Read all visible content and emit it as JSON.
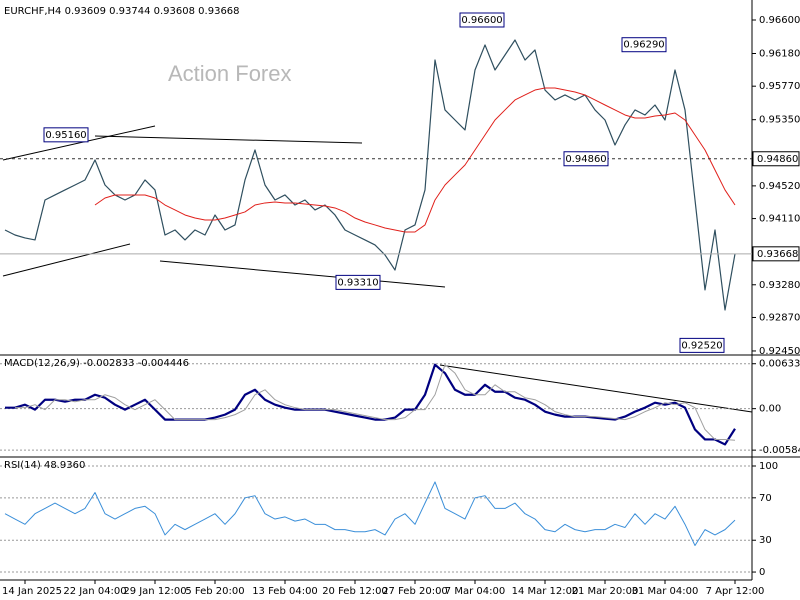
{
  "chart_data": [
    {
      "type": "line",
      "title": "EURCHF,H4  0.93609 0.93744 0.93608 0.93668",
      "watermark": "Action Forex",
      "categories": [
        null,
        null,
        "14 Jan 2025",
        null,
        null,
        null,
        null,
        null,
        null,
        "22 Jan 04:00",
        null,
        null,
        null,
        null,
        null,
        "29 Jan 12:00",
        null,
        null,
        null,
        null,
        null,
        "5 Feb 20:00",
        null,
        null,
        null,
        null,
        null,
        null,
        "13 Feb 04:00",
        null,
        null,
        null,
        null,
        null,
        null,
        "20 Feb 12:00",
        null,
        null,
        null,
        null,
        null,
        "27 Feb 20:00",
        null,
        null,
        null,
        null,
        null,
        "7 Mar 04:00",
        null,
        null,
        null,
        null,
        null,
        null,
        "14 Mar 12:00",
        null,
        null,
        null,
        null,
        null,
        "21 Mar 20:00",
        null,
        null,
        null,
        null,
        null,
        "31 Mar 04:00",
        null,
        null,
        null,
        null,
        null,
        null,
        "7 Apr 12:00"
      ],
      "series": [
        {
          "color": "#2f4f5f",
          "line_width": 1.2,
          "values": [
            0.93967,
            0.93904,
            0.93867,
            0.93842,
            0.94343,
            0.94406,
            0.94469,
            0.94531,
            0.94594,
            0.94845,
            0.94531,
            0.94406,
            0.94343,
            0.94406,
            0.94594,
            0.94469,
            0.93904,
            0.93967,
            0.93842,
            0.93967,
            0.93904,
            0.94155,
            0.93967,
            0.9403,
            0.94594,
            0.9497,
            0.94531,
            0.94343,
            0.94406,
            0.9428,
            0.94343,
            0.94218,
            0.9428,
            0.94155,
            0.93967,
            0.93904,
            0.93842,
            0.93779,
            0.93654,
            0.93465,
            0.93967,
            0.9403,
            0.94469,
            0.96098,
            0.95472,
            0.95346,
            0.95221,
            0.95973,
            0.96287,
            0.95973,
            0.96161,
            0.96349,
            0.96098,
            0.96224,
            0.95722,
            0.95597,
            0.9566,
            0.95597,
            0.9566,
            0.95472,
            0.95346,
            0.95033,
            0.95284,
            0.95472,
            0.95409,
            0.95534,
            0.95346,
            0.95973,
            0.95472,
            0.94343,
            0.93215,
            0.93967,
            0.92964,
            0.93668
          ]
        },
        {
          "color": "#e0201b",
          "line_width": 1,
          "values": [
            null,
            null,
            null,
            null,
            null,
            null,
            null,
            null,
            null,
            0.9428,
            0.94368,
            0.94406,
            0.94406,
            0.94406,
            0.94406,
            0.94368,
            0.9428,
            0.94218,
            0.94155,
            0.94117,
            0.94092,
            0.94092,
            0.94117,
            0.94155,
            0.94193,
            0.9428,
            0.94306,
            0.94318,
            0.94306,
            0.94306,
            0.94293,
            0.9428,
            0.94268,
            0.94243,
            0.94193,
            0.94117,
            0.94067,
            0.9403,
            0.93992,
            0.93967,
            0.93942,
            0.93942,
            0.9403,
            0.94343,
            0.94531,
            0.94657,
            0.94782,
            0.9497,
            0.95158,
            0.95346,
            0.95472,
            0.95597,
            0.9566,
            0.95722,
            0.95747,
            0.95747,
            0.95722,
            0.95697,
            0.9566,
            0.95597,
            0.95534,
            0.95472,
            0.95409,
            0.95371,
            0.95371,
            0.95396,
            0.95409,
            0.95434,
            0.95346,
            0.95158,
            0.9497,
            0.94719,
            0.94469,
            0.9428
          ]
        }
      ],
      "ylim": [
        0.92437,
        0.96788
      ],
      "yticks": [
        {
          "value": 0.966,
          "label": "0.96600"
        },
        {
          "value": 0.9618,
          "label": "0.96180"
        },
        {
          "value": 0.9577,
          "label": "0.95770"
        },
        {
          "value": 0.9535,
          "label": "0.95350"
        },
        {
          "value": 0.9452,
          "label": "0.94520"
        },
        {
          "value": 0.9411,
          "label": "0.94110"
        },
        {
          "value": 0.9328,
          "label": "0.93280"
        },
        {
          "value": 0.9287,
          "label": "0.92870"
        },
        {
          "value": 0.9245,
          "label": "0.92450"
        }
      ],
      "annotations": [
        {
          "value": 0.9516,
          "label": "0.95160"
        },
        {
          "value": 0.966,
          "label": "0.96600"
        },
        {
          "value": 0.9629,
          "label": "0.96290"
        },
        {
          "value": 0.9486,
          "label": "0.94860"
        },
        {
          "value": 0.9331,
          "label": "0.93310"
        },
        {
          "value": 0.9252,
          "label": "0.92520"
        }
      ],
      "levels": [
        {
          "value": 0.9486,
          "label": "0.94860",
          "style": "dashed"
        },
        {
          "value": 0.93668,
          "label": "0.93668",
          "style": "solid"
        }
      ],
      "grid": false
    },
    {
      "type": "line",
      "title": "MACD(12,26,9) -0.002833 -0.004446",
      "series": [
        {
          "color": "#000080",
          "line_width": 2.2,
          "values": [
            0.00014,
            0.00014,
            0.00056,
            -0.00014,
            0.00126,
            0.00126,
            0.00098,
            0.00126,
            0.00126,
            0.00196,
            0.00154,
            0.00056,
            -0.00014,
            0.00056,
            0.00126,
            -0.00014,
            -0.00154,
            -0.00154,
            -0.00154,
            -0.00154,
            -0.00154,
            -0.00126,
            -0.00084,
            -0.00014,
            0.00196,
            0.00266,
            0.00126,
            0.00056,
            0.00014,
            -0.00014,
            -0.00014,
            -0.00014,
            -0.00014,
            -0.00042,
            -0.0007,
            -0.00098,
            -0.00126,
            -0.00154,
            -0.00154,
            -0.00126,
            -0.00014,
            -0.00014,
            0.00196,
            0.0062,
            0.005,
            0.00266,
            0.00196,
            0.00196,
            0.00336,
            0.00238,
            0.00238,
            0.00154,
            0.00126,
            0.00056,
            -0.00042,
            -0.00084,
            -0.00112,
            -0.00112,
            -0.00112,
            -0.00126,
            -0.0014,
            -0.00154,
            -0.00112,
            -0.00042,
            0.00014,
            0.00084,
            0.00056,
            0.00084,
            0.00014,
            -0.00294,
            -0.00434,
            -0.00434,
            -0.00504,
            -0.00283
          ]
        },
        {
          "color": "#a0a0a0",
          "line_width": 1,
          "values": [
            null,
            0.00014,
            0.00014,
            0.00056,
            -0.00014,
            0.00126,
            0.00126,
            0.00098,
            0.00126,
            0.00126,
            0.00196,
            0.00154,
            0.00056,
            -0.00014,
            0.00056,
            0.00126,
            -0.00014,
            -0.00154,
            -0.00154,
            -0.00154,
            -0.00154,
            -0.00154,
            -0.00126,
            -0.00084,
            -0.00014,
            0.00196,
            0.00266,
            0.00126,
            0.00056,
            0.00014,
            -0.00014,
            -0.00014,
            -0.00014,
            -0.00014,
            -0.00042,
            -0.0007,
            -0.00098,
            -0.00126,
            -0.00154,
            -0.00154,
            -0.00126,
            -0.00014,
            -0.00014,
            0.00196,
            0.0062,
            0.005,
            0.00266,
            0.00196,
            0.00196,
            0.00336,
            0.00238,
            0.00238,
            0.00154,
            0.00126,
            0.00056,
            -0.00042,
            -0.00084,
            -0.00112,
            -0.00112,
            -0.00112,
            -0.00126,
            -0.0014,
            -0.00154,
            -0.00112,
            -0.00042,
            0.00014,
            0.00084,
            0.00056,
            0.00084,
            0.00014,
            -0.00294,
            -0.00434,
            -0.00434,
            -0.00445
          ]
        }
      ],
      "ylim": [
        -0.00653,
        0.00728
      ],
      "yticks": [
        0.006332,
        {
          "value": 0,
          "label": "0.00"
        },
        -0.005845
      ],
      "grid": true
    },
    {
      "type": "line",
      "title": "RSI(14) 48.9360",
      "series": [
        {
          "color": "#3b8fd9",
          "line_width": 1,
          "values": [
            55,
            50,
            45,
            55,
            60,
            65,
            60,
            55,
            60,
            75,
            55,
            50,
            55,
            60,
            62,
            55,
            35,
            45,
            40,
            45,
            50,
            55,
            45,
            55,
            70,
            72,
            55,
            50,
            52,
            48,
            50,
            45,
            45,
            40,
            40,
            38,
            38,
            40,
            35,
            50,
            55,
            45,
            65,
            85,
            60,
            55,
            50,
            70,
            72,
            60,
            60,
            65,
            55,
            50,
            40,
            38,
            45,
            40,
            38,
            40,
            40,
            45,
            42,
            55,
            45,
            55,
            50,
            62,
            45,
            25,
            40,
            35,
            40,
            48.936
          ]
        }
      ],
      "ylim": [
        -7.5,
        106.6
      ],
      "yticks": [
        100,
        70,
        30,
        0
      ],
      "grid": true
    }
  ]
}
